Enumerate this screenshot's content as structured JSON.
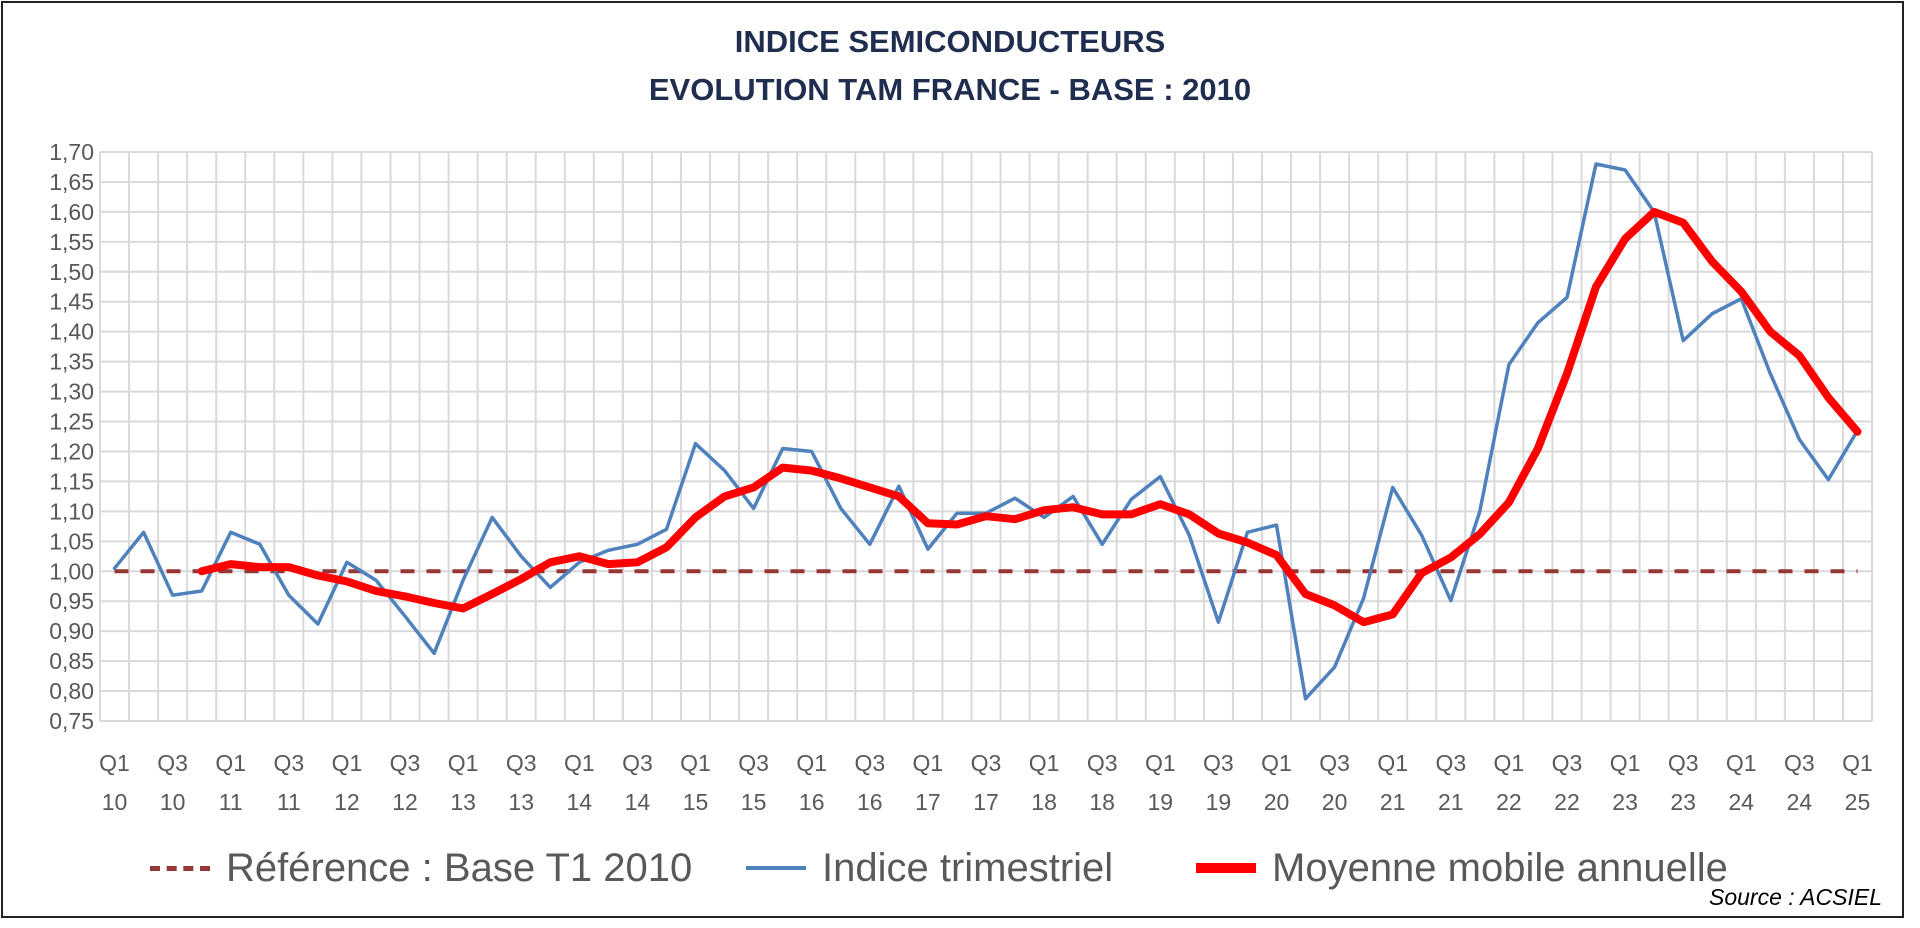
{
  "chart_data": {
    "type": "line",
    "title": [
      "INDICE SEMICONDUCTEURS",
      "EVOLUTION TAM FRANCE - BASE : 2010"
    ],
    "xlabel": "",
    "ylabel": "",
    "ylim": [
      0.75,
      1.7
    ],
    "ystep": 0.05,
    "yticks": [
      "0,75",
      "0,80",
      "0,85",
      "0,90",
      "0,95",
      "1,00",
      "1,05",
      "1,10",
      "1,15",
      "1,20",
      "1,25",
      "1,30",
      "1,35",
      "1,40",
      "1,45",
      "1,50",
      "1,55",
      "1,60",
      "1,65",
      "1,70"
    ],
    "x_tick_labels": [
      [
        "Q1",
        "10"
      ],
      [
        "Q3",
        "10"
      ],
      [
        "Q1",
        "11"
      ],
      [
        "Q3",
        "11"
      ],
      [
        "Q1",
        "12"
      ],
      [
        "Q3",
        "12"
      ],
      [
        "Q1",
        "13"
      ],
      [
        "Q3",
        "13"
      ],
      [
        "Q1",
        "14"
      ],
      [
        "Q3",
        "14"
      ],
      [
        "Q1",
        "15"
      ],
      [
        "Q3",
        "15"
      ],
      [
        "Q1",
        "16"
      ],
      [
        "Q3",
        "16"
      ],
      [
        "Q1",
        "17"
      ],
      [
        "Q3",
        "17"
      ],
      [
        "Q1",
        "18"
      ],
      [
        "Q3",
        "18"
      ],
      [
        "Q1",
        "19"
      ],
      [
        "Q3",
        "19"
      ],
      [
        "Q1",
        "20"
      ],
      [
        "Q3",
        "20"
      ],
      [
        "Q1",
        "21"
      ],
      [
        "Q3",
        "21"
      ],
      [
        "Q1",
        "22"
      ],
      [
        "Q3",
        "22"
      ],
      [
        "Q1",
        "23"
      ],
      [
        "Q3",
        "23"
      ],
      [
        "Q1",
        "24"
      ],
      [
        "Q3",
        "24"
      ],
      [
        "Q1",
        "25"
      ]
    ],
    "n_quarters": 61,
    "grid": true,
    "legend_position": "bottom",
    "series": [
      {
        "name": "Référence : Base T1 2010",
        "color": "#953735",
        "style": "dashed",
        "start": 0,
        "values": [
          1,
          1,
          1,
          1,
          1,
          1,
          1,
          1,
          1,
          1,
          1,
          1,
          1,
          1,
          1,
          1,
          1,
          1,
          1,
          1,
          1,
          1,
          1,
          1,
          1,
          1,
          1,
          1,
          1,
          1,
          1,
          1,
          1,
          1,
          1,
          1,
          1,
          1,
          1,
          1,
          1,
          1,
          1,
          1,
          1,
          1,
          1,
          1,
          1,
          1,
          1,
          1,
          1,
          1,
          1,
          1,
          1,
          1,
          1,
          1,
          1
        ]
      },
      {
        "name": "Indice trimestriel",
        "color": "#4f81bd",
        "style": "solid",
        "start": 0,
        "values": [
          1.005,
          1.065,
          0.96,
          0.967,
          1.065,
          1.045,
          0.96,
          0.912,
          1.015,
          0.985,
          0.925,
          0.863,
          0.985,
          1.09,
          1.025,
          0.973,
          1.015,
          1.035,
          1.045,
          1.07,
          1.213,
          1.168,
          1.105,
          1.205,
          1.2,
          1.105,
          1.045,
          1.142,
          1.037,
          1.097,
          1.097,
          1.122,
          1.09,
          1.125,
          1.045,
          1.12,
          1.158,
          1.06,
          0.915,
          1.065,
          1.077,
          0.787,
          0.84,
          0.955,
          1.14,
          1.06,
          0.951,
          1.1,
          1.345,
          1.415,
          1.457,
          1.68,
          1.67,
          1.6,
          1.385,
          1.43,
          1.455,
          1.33,
          1.22,
          1.153,
          1.235
        ]
      },
      {
        "name": "Moyenne mobile annuelle",
        "color": "#ff0000",
        "style": "thick",
        "start": 3,
        "values": [
          1.0,
          1.012,
          1.007,
          1.007,
          0.993,
          0.983,
          0.967,
          0.958,
          0.947,
          0.938,
          0.962,
          0.987,
          1.015,
          1.025,
          1.012,
          1.015,
          1.04,
          1.09,
          1.125,
          1.14,
          1.173,
          1.168,
          1.155,
          1.14,
          1.125,
          1.08,
          1.078,
          1.092,
          1.087,
          1.102,
          1.107,
          1.095,
          1.095,
          1.112,
          1.095,
          1.063,
          1.048,
          1.027,
          0.962,
          0.943,
          0.915,
          0.928,
          0.997,
          1.023,
          1.062,
          1.115,
          1.205,
          1.33,
          1.475,
          1.555,
          1.6,
          1.582,
          1.517,
          1.467,
          1.4,
          1.36,
          1.29,
          1.233
        ]
      }
    ]
  },
  "source": "Source : ACSIEL"
}
